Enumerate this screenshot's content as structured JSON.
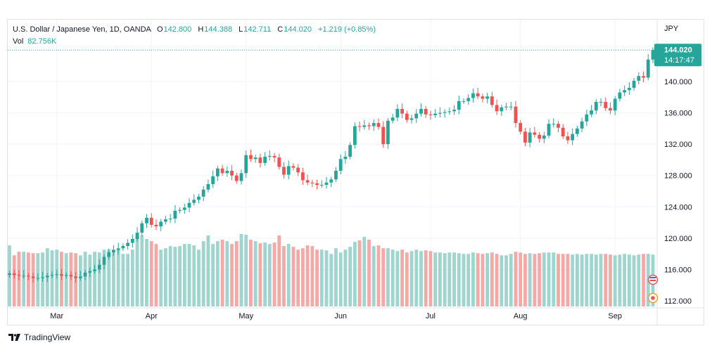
{
  "header": {
    "symbol": "U.S. Dollar / Japanese Yen, 1D, OANDA",
    "o_label": "O",
    "o": "142.800",
    "h_label": "H",
    "h": "144.388",
    "l_label": "L",
    "l": "142.711",
    "c_label": "C",
    "c": "144.020",
    "change": "+1.219 (+0.85%)",
    "vol_label": "Vol",
    "vol": "82.756K"
  },
  "price_tag": {
    "price": "144.020",
    "countdown": "14:17:47"
  },
  "brand": "TradingView",
  "colors": {
    "up": "#26a69a",
    "down": "#ef5350",
    "up_vol": "#9fd5cf",
    "down_vol": "#f4a9a7",
    "grid": "#f0f3fa",
    "text": "#131722"
  },
  "chart_data": {
    "type": "candlestick",
    "currency": "JPY",
    "y_ticks": [
      "112.000",
      "116.000",
      "120.000",
      "124.000",
      "128.000",
      "132.000",
      "136.000",
      "140.000"
    ],
    "ylim": [
      111.5,
      145.5
    ],
    "x_labels": [
      {
        "label": "Mar",
        "index": 10
      },
      {
        "label": "Apr",
        "index": 30
      },
      {
        "label": "May",
        "index": 50
      },
      {
        "label": "Jun",
        "index": 70
      },
      {
        "label": "Jul",
        "index": 89
      },
      {
        "label": "Aug",
        "index": 108
      },
      {
        "label": "Sep",
        "index": 128
      }
    ],
    "series": [
      {
        "name": "USDJPY",
        "closes": [
          115.5,
          115.3,
          115.2,
          115.2,
          115.1,
          114.9,
          114.9,
          115.0,
          115.2,
          115.3,
          115.4,
          115.2,
          115.3,
          115.1,
          114.9,
          115.1,
          115.6,
          115.8,
          116.0,
          116.6,
          117.6,
          118.2,
          118.5,
          118.7,
          119.0,
          119.4,
          119.9,
          120.7,
          121.9,
          122.6,
          121.7,
          121.5,
          122.1,
          122.4,
          122.5,
          123.5,
          123.6,
          123.9,
          124.5,
          124.9,
          125.3,
          126.2,
          126.9,
          127.9,
          128.9,
          128.3,
          128.6,
          128.0,
          127.3,
          128.3,
          130.6,
          130.1,
          130.3,
          129.6,
          130.4,
          130.5,
          130.3,
          129.1,
          128.1,
          129.2,
          129.0,
          128.4,
          127.4,
          127.1,
          127.0,
          126.8,
          126.8,
          127.1,
          127.5,
          128.6,
          130.1,
          130.4,
          131.9,
          134.3,
          134.2,
          134.4,
          134.3,
          134.7,
          134.2,
          132.0,
          135.0,
          135.4,
          136.5,
          135.9,
          135.1,
          135.3,
          135.9,
          136.5,
          135.8,
          135.7,
          135.9,
          136.0,
          136.1,
          136.2,
          136.4,
          137.5,
          137.5,
          137.9,
          138.5,
          138.1,
          137.8,
          138.1,
          137.0,
          136.2,
          136.7,
          136.8,
          136.8,
          134.7,
          133.6,
          132.2,
          133.5,
          133.2,
          132.7,
          133.1,
          134.6,
          134.6,
          134.1,
          133.0,
          132.5,
          133.3,
          134.0,
          134.9,
          135.8,
          136.3,
          137.4,
          137.4,
          136.6,
          136.3,
          137.8,
          138.6,
          138.9,
          139.2,
          140.1,
          140.7,
          140.5,
          142.8,
          144.02
        ]
      },
      {
        "name": "Vol",
        "values": [
          86,
          72,
          77,
          77,
          76,
          75,
          75,
          76,
          82,
          79,
          80,
          77,
          75,
          76,
          75,
          72,
          77,
          73,
          77,
          76,
          80,
          80,
          80,
          80,
          74,
          74,
          80,
          100,
          100,
          95,
          92,
          88,
          80,
          82,
          85,
          84,
          85,
          88,
          88,
          86,
          80,
          92,
          100,
          88,
          92,
          94,
          92,
          88,
          92,
          102,
          101,
          94,
          92,
          89,
          90,
          88,
          90,
          100,
          85,
          88,
          84,
          80,
          82,
          86,
          85,
          80,
          80,
          79,
          74,
          82,
          76,
          80,
          84,
          91,
          93,
          98,
          94,
          85,
          86,
          82,
          82,
          80,
          78,
          80,
          76,
          78,
          80,
          78,
          79,
          78,
          76,
          76,
          75,
          76,
          76,
          75,
          74,
          74,
          76,
          75,
          74,
          75,
          76,
          74,
          72,
          72,
          74,
          77,
          76,
          74,
          75,
          74,
          75,
          76,
          76,
          76,
          74,
          74,
          74,
          73,
          74,
          73,
          74,
          74,
          73,
          74,
          74,
          73,
          72,
          73,
          74,
          73,
          72,
          73,
          74,
          74,
          73
        ]
      }
    ]
  }
}
